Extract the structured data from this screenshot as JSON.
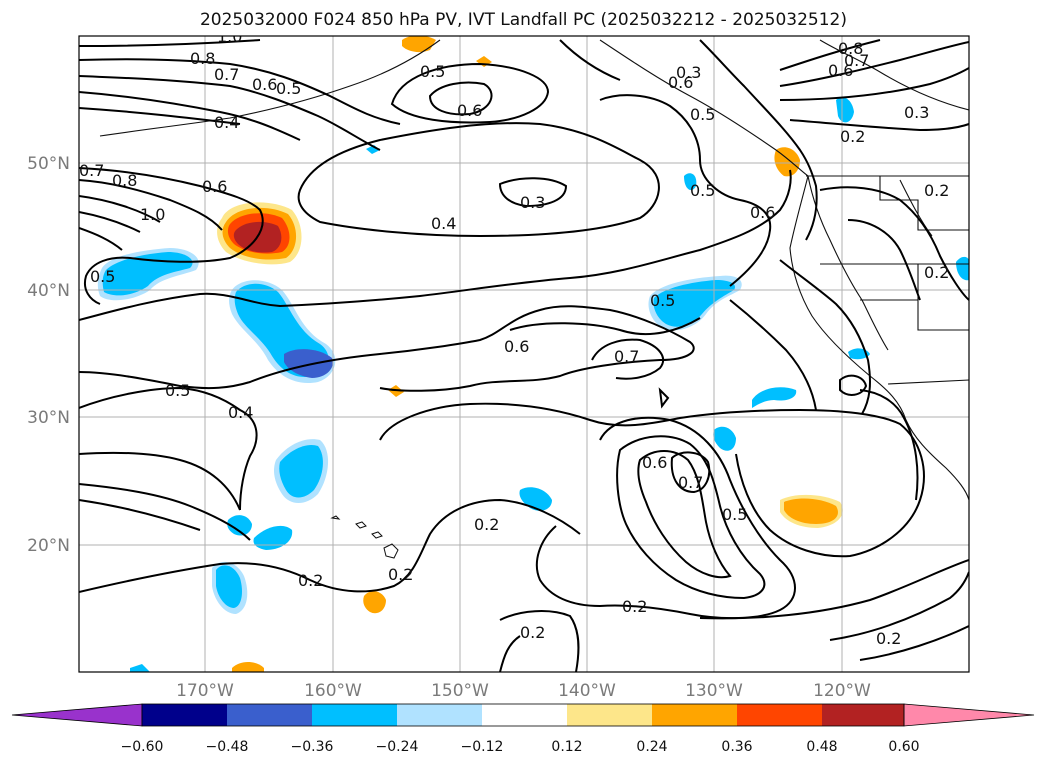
{
  "title": "2025032000 F024 850 hPa PV, IVT Landfall PC (2025032212 - 2025032512)",
  "colors": {
    "grid": "#b0b0b0",
    "coast": "#111111",
    "contour": "#000000",
    "axis_label": "#7a7a7a"
  },
  "axes": {
    "lat_labels": [
      "50°N",
      "40°N",
      "30°N",
      "20°N"
    ],
    "lon_labels": [
      "170°W",
      "160°W",
      "150°W",
      "140°W",
      "130°W",
      "120°W"
    ]
  },
  "colorbar": {
    "bins": [
      {
        "color": "#9932cc"
      },
      {
        "color": "#00008b"
      },
      {
        "color": "#3a5fcd"
      },
      {
        "color": "#00bfff"
      },
      {
        "color": "#b0e2ff"
      },
      {
        "color": "#ffffff"
      },
      {
        "color": "#fde68a"
      },
      {
        "color": "#ffa500"
      },
      {
        "color": "#ff4500"
      },
      {
        "color": "#b22222"
      },
      {
        "color": "#ff88aa"
      }
    ],
    "tick_labels": [
      "−0.60",
      "−0.48",
      "−0.36",
      "−0.24",
      "−0.12",
      "0.12",
      "0.24",
      "0.36",
      "0.48",
      "0.60"
    ]
  },
  "contour_labels": [
    "1.0",
    "0.8",
    "0.7",
    "0.6",
    "0.5",
    "0.6",
    "0.5",
    "0.8",
    "0.7",
    "0.6",
    "0.3",
    "0.4",
    "0.5",
    "0.6",
    "0.3",
    "0.2",
    "0.7",
    "0.8",
    "1.0",
    "0.6",
    "0.4",
    "0.3",
    "0.5",
    "0.6",
    "0.2",
    "0.5",
    "0.5",
    "0.6",
    "0.7",
    "0.5",
    "0.4",
    "0.6",
    "0.7",
    "0.5",
    "0.2",
    "0.2",
    "0.2",
    "0.2",
    "0.2",
    "0.2",
    "0.2"
  ]
}
